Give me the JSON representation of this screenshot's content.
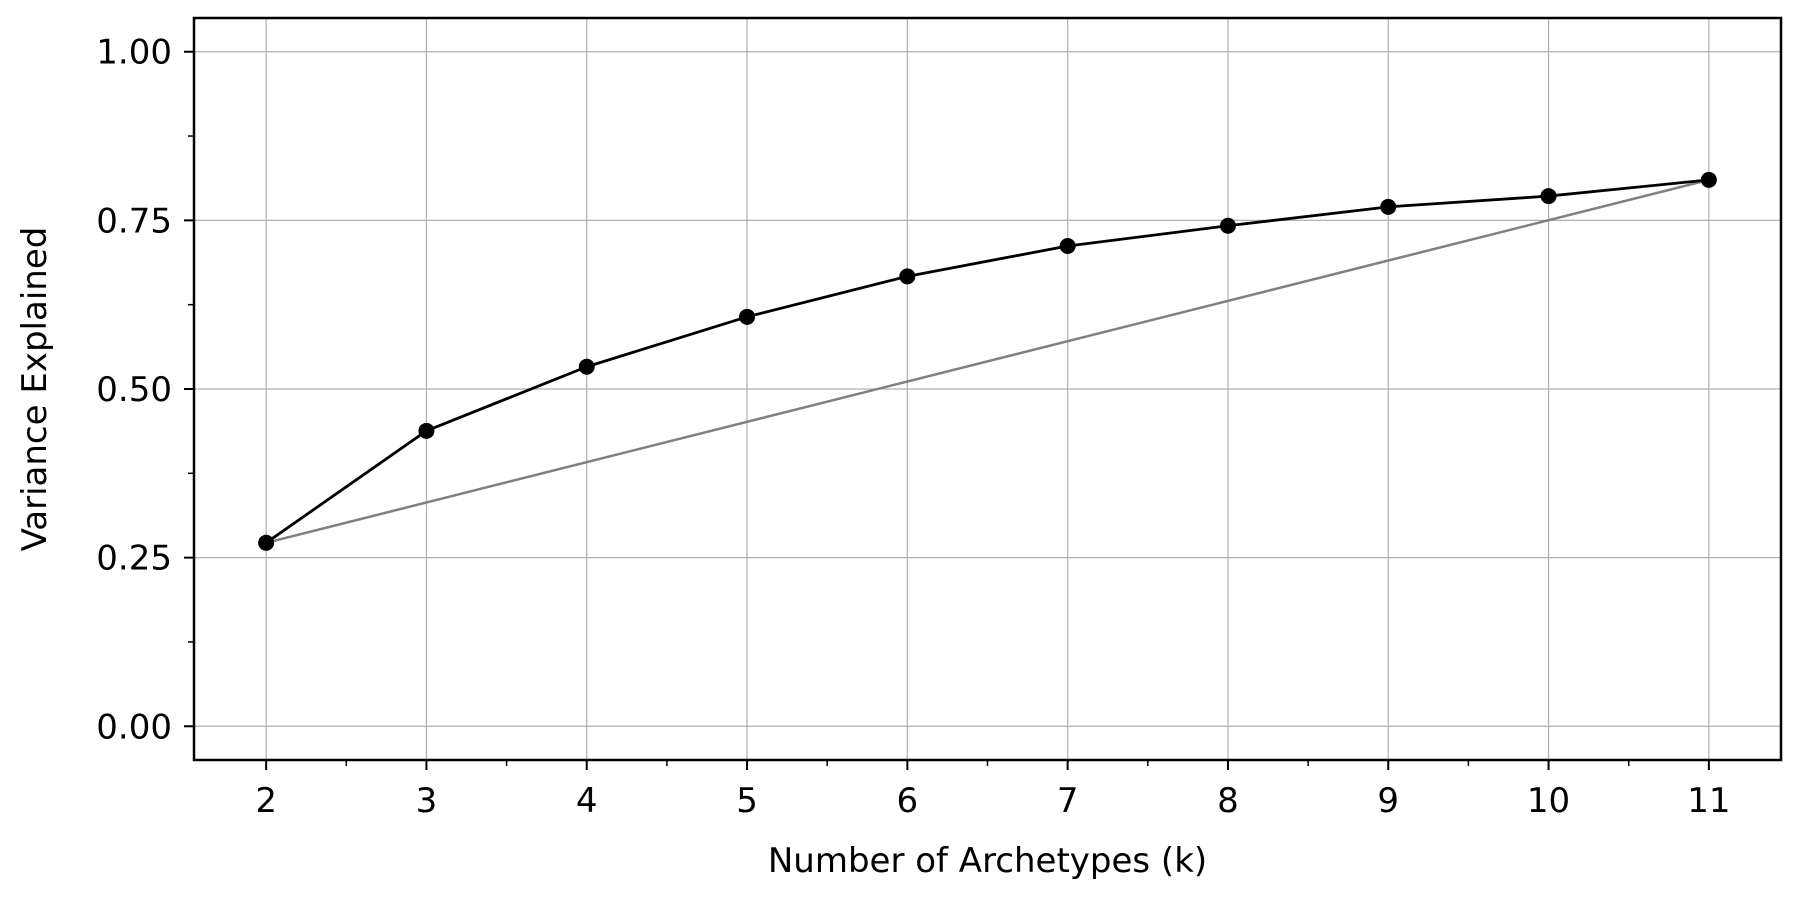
{
  "chart_data": {
    "type": "line",
    "title": "",
    "xlabel": "Number of Archetypes (k)",
    "ylabel": "Variance Explained",
    "x": [
      2,
      3,
      4,
      5,
      6,
      7,
      8,
      9,
      10,
      11
    ],
    "series": [
      {
        "values": [
          0.272,
          0.438,
          0.533,
          0.607,
          0.667,
          0.712,
          0.742,
          0.77,
          0.786,
          0.81
        ],
        "color": "#000000",
        "marker": "circle"
      }
    ],
    "reference_line": {
      "from": [
        2,
        0.272
      ],
      "to": [
        11,
        0.81
      ],
      "color": "#808080"
    },
    "xlim": [
      1.55,
      11.45
    ],
    "ylim": [
      -0.05,
      1.05
    ],
    "x_ticks": [
      "2",
      "3",
      "4",
      "5",
      "6",
      "7",
      "8",
      "9",
      "10",
      "11"
    ],
    "y_ticks": [
      "0.00",
      "0.25",
      "0.50",
      "0.75",
      "1.00"
    ],
    "grid": true,
    "legend": "none"
  }
}
